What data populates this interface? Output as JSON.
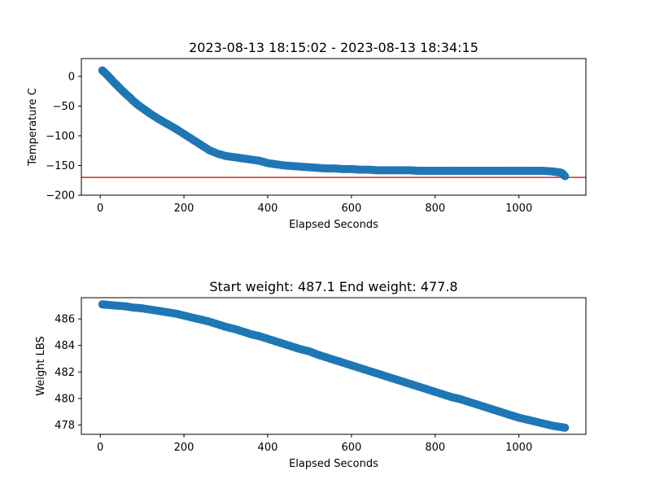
{
  "chart_data": [
    {
      "type": "scatter",
      "title": "2023-08-13 18:15:02 - 2023-08-13 18:34:15",
      "xlabel": "Elapsed Seconds",
      "ylabel": "Temperature C",
      "xlim": [
        -45,
        1160
      ],
      "ylim": [
        -200,
        30
      ],
      "xticks": [
        0,
        200,
        400,
        600,
        800,
        1000
      ],
      "xtick_labels": [
        "0",
        "200",
        "400",
        "600",
        "800",
        "1000"
      ],
      "yticks": [
        0,
        -50,
        -100,
        -150,
        -200
      ],
      "ytick_labels": [
        "0",
        "−50",
        "−100",
        "−150",
        "−200"
      ],
      "marker_color": "#1f77b4",
      "reference_line": {
        "y": -170,
        "color": "#d62728"
      },
      "grid": false,
      "series": [
        {
          "x": [
            5,
            10,
            20,
            30,
            40,
            50,
            60,
            70,
            80,
            90,
            100,
            110,
            120,
            140,
            160,
            180,
            200,
            220,
            240,
            260,
            280,
            300,
            320,
            340,
            360,
            380,
            400,
            420,
            440,
            460,
            480,
            500,
            520,
            540,
            560,
            580,
            600,
            620,
            640,
            660,
            680,
            700,
            720,
            740,
            760,
            780,
            800,
            820,
            840,
            860,
            880,
            900,
            920,
            940,
            960,
            980,
            1000,
            1020,
            1040,
            1060,
            1080,
            1090,
            1100,
            1105,
            1110
          ],
          "y": [
            10,
            7,
            0,
            -8,
            -15,
            -22,
            -29,
            -35,
            -42,
            -48,
            -53,
            -58,
            -63,
            -72,
            -80,
            -88,
            -97,
            -106,
            -115,
            -124,
            -130,
            -134,
            -136,
            -138,
            -140,
            -142,
            -146,
            -148,
            -150,
            -151,
            -152,
            -153,
            -154,
            -155,
            -155,
            -156,
            -156,
            -157,
            -157,
            -158,
            -158,
            -158,
            -158,
            -158,
            -159,
            -159,
            -159,
            -159,
            -159,
            -159,
            -159,
            -159,
            -159,
            -159,
            -159,
            -159,
            -159,
            -159,
            -159,
            -159,
            -160,
            -161,
            -162,
            -164,
            -168
          ]
        }
      ]
    },
    {
      "type": "scatter",
      "title": "Start weight: 487.1 End weight: 477.8",
      "xlabel": "Elapsed Seconds",
      "ylabel": "Weight LBS",
      "xlim": [
        -45,
        1160
      ],
      "ylim": [
        477.3,
        487.6
      ],
      "xticks": [
        0,
        200,
        400,
        600,
        800,
        1000
      ],
      "xtick_labels": [
        "0",
        "200",
        "400",
        "600",
        "800",
        "1000"
      ],
      "yticks": [
        478,
        480,
        482,
        484,
        486
      ],
      "ytick_labels": [
        "478",
        "480",
        "482",
        "484",
        "486"
      ],
      "marker_color": "#1f77b4",
      "grid": false,
      "series": [
        {
          "x": [
            5,
            20,
            40,
            60,
            80,
            100,
            120,
            140,
            160,
            180,
            200,
            220,
            240,
            260,
            280,
            300,
            320,
            340,
            360,
            380,
            400,
            420,
            440,
            460,
            480,
            500,
            520,
            540,
            560,
            580,
            600,
            620,
            640,
            660,
            680,
            700,
            720,
            740,
            760,
            780,
            800,
            820,
            840,
            860,
            880,
            900,
            920,
            940,
            960,
            980,
            1000,
            1020,
            1040,
            1060,
            1080,
            1100,
            1110
          ],
          "y": [
            487.1,
            487.05,
            487.0,
            486.95,
            486.85,
            486.8,
            486.7,
            486.6,
            486.5,
            486.4,
            486.25,
            486.1,
            485.95,
            485.8,
            485.6,
            485.4,
            485.25,
            485.05,
            484.85,
            484.7,
            484.5,
            484.3,
            484.1,
            483.9,
            483.7,
            483.55,
            483.3,
            483.1,
            482.9,
            482.7,
            482.5,
            482.3,
            482.1,
            481.9,
            481.7,
            481.5,
            481.3,
            481.1,
            480.9,
            480.7,
            480.5,
            480.3,
            480.1,
            479.95,
            479.75,
            479.55,
            479.35,
            479.15,
            478.95,
            478.75,
            478.55,
            478.4,
            478.25,
            478.1,
            477.95,
            477.85,
            477.8
          ]
        }
      ]
    }
  ]
}
